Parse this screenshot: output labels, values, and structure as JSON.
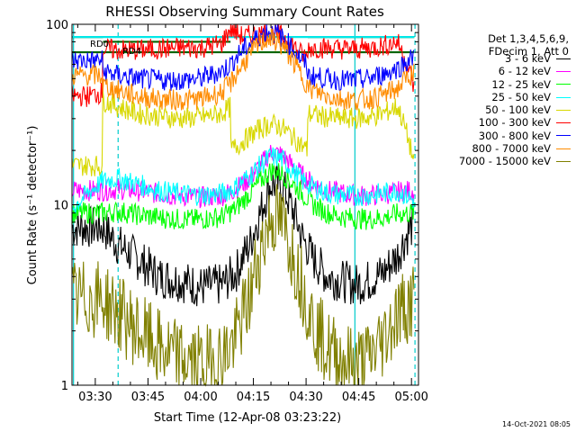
{
  "chart_data": {
    "type": "line",
    "title": "RHESSI Observing Summary Count Rates",
    "xlabel": "Start Time (12-Apr-08 03:23:22)",
    "ylabel": "Count Rate (s⁻¹ detector⁻¹)",
    "yscale": "log",
    "ylim": [
      1,
      100
    ],
    "y_tick_labels": [
      "1",
      "10",
      "100"
    ],
    "xlim_minutes": [
      203.37,
      302.0
    ],
    "x_ticks": [
      {
        "label": "03:30",
        "minute": 210
      },
      {
        "label": "03:45",
        "minute": 225
      },
      {
        "label": "04:00",
        "minute": 240
      },
      {
        "label": "04:15",
        "minute": 255
      },
      {
        "label": "04:30",
        "minute": 270
      },
      {
        "label": "04:45",
        "minute": 285
      },
      {
        "label": "05:00",
        "minute": 300
      }
    ],
    "annotations": [
      "RD0",
      "RD4"
    ],
    "segment_lines": [
      {
        "label": "RD0",
        "color": "#006400",
        "segments": [
          [
            203.4,
            212.2,
            85
          ],
          [
            212.2,
            248.5,
            80
          ],
          [
            270.5,
            300.8,
            85
          ]
        ]
      },
      {
        "label": "RD4",
        "color": "#006400",
        "segments": [
          [
            203.4,
            300.8,
            70
          ]
        ]
      },
      {
        "label": "",
        "color": "#00e8e8",
        "segments": [
          [
            203.4,
            300.8,
            85
          ]
        ]
      }
    ],
    "vertical_markers": [
      {
        "minute": 203.8,
        "style": "solid",
        "color": "#00cccc"
      },
      {
        "minute": 216.5,
        "style": "dashed",
        "color": "#00cccc"
      },
      {
        "minute": 283.9,
        "style": "solid",
        "color": "#00cccc"
      },
      {
        "minute": 301.0,
        "style": "dashed",
        "color": "#00cccc"
      }
    ],
    "series": [
      {
        "name": "3 - 6 keV",
        "color": "#000000",
        "x": [
          203.4,
          212.0,
          216.5,
          222,
          228,
          234,
          240,
          246,
          250,
          254,
          257,
          260,
          263,
          266,
          269,
          272,
          276,
          280,
          284,
          288,
          292,
          296,
          300.8
        ],
        "y": [
          7.5,
          7.5,
          6.0,
          5.0,
          4.0,
          3.8,
          3.5,
          3.6,
          4.2,
          6.0,
          9.0,
          13.0,
          13.0,
          9.5,
          6.5,
          5.0,
          4.0,
          3.8,
          3.6,
          3.8,
          4.2,
          5.2,
          8.0
        ]
      },
      {
        "name": "6 - 12 keV",
        "color": "#ff00ff",
        "x": [
          203.4,
          212.0,
          216.5,
          222,
          228,
          234,
          240,
          246,
          250,
          254,
          257,
          260,
          263,
          266,
          269,
          272,
          276,
          280,
          284,
          288,
          292,
          296,
          300.8
        ],
        "y": [
          12.0,
          12.0,
          12.2,
          12.0,
          11.5,
          11.2,
          11.0,
          11.2,
          12.2,
          14.0,
          16.5,
          19.5,
          19.0,
          16.5,
          14.5,
          13.0,
          12.0,
          11.6,
          11.3,
          11.2,
          11.4,
          11.8,
          12.0
        ]
      },
      {
        "name": "12 - 25 keV",
        "color": "#00ff00",
        "x": [
          203.4,
          212.0,
          216.5,
          222,
          228,
          234,
          240,
          246,
          250,
          254,
          257,
          260,
          263,
          266,
          269,
          272,
          276,
          280,
          284,
          288,
          292,
          296,
          300.8
        ],
        "y": [
          9.0,
          9.0,
          9.2,
          8.8,
          8.5,
          8.3,
          8.3,
          8.6,
          9.5,
          11.5,
          13.5,
          15.5,
          15.0,
          13.2,
          11.5,
          10.0,
          9.0,
          8.6,
          8.4,
          8.3,
          8.5,
          8.9,
          9.0
        ]
      },
      {
        "name": "25 - 50 keV",
        "color": "#00ffff",
        "x": [
          203.4,
          212.0,
          216.5,
          222,
          228,
          234,
          240,
          246,
          250,
          254,
          257,
          260,
          263,
          266,
          269,
          272,
          276,
          280,
          284,
          288,
          292,
          296,
          300.8
        ],
        "y": [
          9.5,
          13.5,
          14.0,
          13.0,
          12.0,
          11.5,
          11.3,
          11.5,
          12.5,
          14.5,
          16.5,
          18.5,
          18.0,
          15.5,
          13.5,
          12.5,
          11.6,
          11.3,
          11.2,
          11.3,
          11.6,
          12.0,
          10.5
        ]
      },
      {
        "name": "50 - 100 keV",
        "color": "#d8d800",
        "x": [
          203.4,
          212.0,
          212.1,
          216.5,
          222,
          228,
          234,
          240,
          246,
          248.5,
          248.6,
          250,
          254,
          257,
          260,
          263,
          266,
          269,
          270.4,
          270.5,
          276,
          280,
          284,
          288,
          292,
          296,
          300.8
        ],
        "y": [
          16.5,
          16.5,
          38.0,
          35.0,
          32.0,
          31.0,
          30.0,
          30.5,
          32.0,
          35.0,
          20.0,
          21.0,
          24.0,
          26.5,
          28.0,
          27.0,
          24.0,
          21.0,
          20.0,
          32.0,
          30.5,
          30.0,
          30.0,
          30.5,
          32.0,
          35.0,
          16.5
        ]
      },
      {
        "name": "100 - 300 keV",
        "color": "#ff0000",
        "x": [
          203.4,
          208,
          212.0,
          212.1,
          216.5,
          222,
          228,
          234,
          240,
          246,
          248.5,
          252,
          256,
          259,
          262,
          265,
          268,
          270.4,
          270.5,
          276,
          280,
          284,
          288,
          292,
          296,
          300.8
        ],
        "y": [
          40.0,
          40.0,
          42.0,
          73.0,
          72.0,
          72.0,
          73.0,
          74.0,
          74.0,
          78.0,
          95.0,
          85.0,
          88.0,
          90.0,
          88.0,
          82.0,
          70.0,
          65.0,
          74.0,
          74.0,
          73.0,
          73.0,
          74.0,
          76.0,
          80.0,
          44.0
        ]
      },
      {
        "name": "300 - 800 keV",
        "color": "#0000ff",
        "x": [
          203.4,
          212.0,
          212.1,
          216.5,
          222,
          228,
          234,
          240,
          246,
          248.5,
          252,
          256,
          259,
          262,
          265,
          268,
          270.4,
          270.5,
          276,
          280,
          284,
          288,
          292,
          296,
          300.8
        ],
        "y": [
          63.0,
          63.0,
          55.0,
          52.0,
          50.0,
          49.0,
          49.0,
          50.0,
          55.0,
          60.0,
          72.0,
          84.0,
          92.0,
          88.0,
          78.0,
          66.0,
          58.0,
          52.0,
          50.0,
          49.0,
          49.0,
          50.0,
          53.0,
          57.0,
          66.0
        ]
      },
      {
        "name": "800 - 7000 keV",
        "color": "#ff8c00",
        "x": [
          203.4,
          212.0,
          212.1,
          216.5,
          222,
          228,
          234,
          240,
          246,
          248.5,
          252,
          256,
          259,
          262,
          265,
          268,
          270.4,
          270.5,
          276,
          280,
          284,
          288,
          292,
          296,
          300.8
        ],
        "y": [
          52.0,
          52.0,
          46.0,
          43.0,
          40.0,
          38.5,
          38.0,
          38.5,
          42.0,
          47.0,
          60.0,
          75.0,
          84.0,
          80.0,
          68.0,
          55.0,
          46.0,
          44.0,
          40.0,
          38.5,
          38.0,
          38.5,
          40.5,
          44.0,
          55.0
        ]
      },
      {
        "name": "7000 - 15000 keV",
        "color": "#808000",
        "x": [
          203.4,
          212.0,
          216.5,
          222,
          228,
          234,
          240,
          246,
          250,
          254,
          257,
          260,
          263,
          266,
          269,
          272,
          276,
          280,
          284,
          288,
          292,
          296,
          300.8
        ],
        "y": [
          3.0,
          3.0,
          2.5,
          2.0,
          1.6,
          1.4,
          1.3,
          1.4,
          1.8,
          3.0,
          5.5,
          8.5,
          8.0,
          5.5,
          3.5,
          2.2,
          1.6,
          1.4,
          1.3,
          1.4,
          1.8,
          2.5,
          3.0
        ]
      }
    ]
  },
  "legend": {
    "header_line1": "Det 1,3,4,5,6,9,",
    "header_line2": "FDecim 1, Att 0"
  },
  "footnote": "14-Oct-2021 08:05"
}
